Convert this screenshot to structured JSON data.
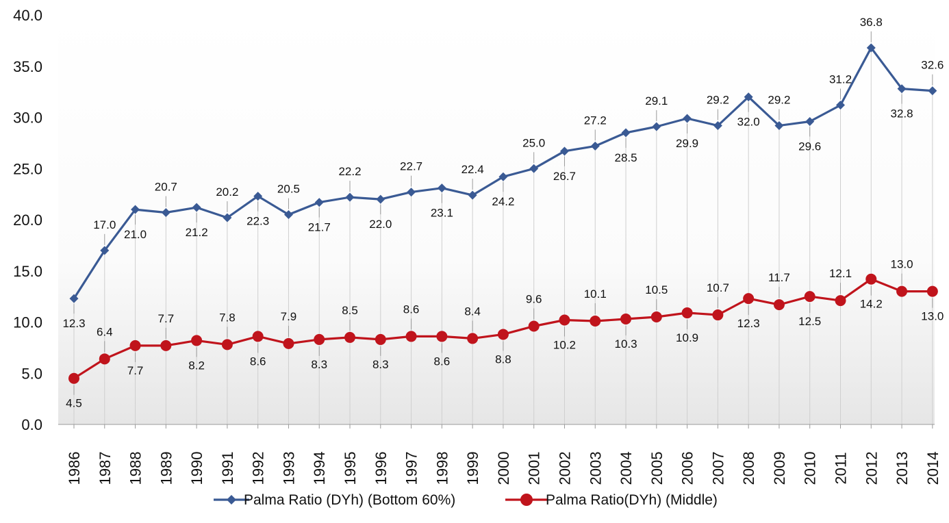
{
  "chart_data": {
    "type": "line",
    "categories": [
      "1986",
      "1987",
      "1988",
      "1989",
      "1990",
      "1991",
      "1992",
      "1993",
      "1994",
      "1995",
      "1996",
      "1997",
      "1998",
      "1999",
      "2000",
      "2001",
      "2002",
      "2003",
      "2004",
      "2005",
      "2006",
      "2007",
      "2008",
      "2009",
      "2010",
      "2011",
      "2012",
      "2013",
      "2014"
    ],
    "ylim": [
      0,
      40
    ],
    "yticks": [
      "0.0",
      "5.0",
      "10.0",
      "15.0",
      "20.0",
      "25.0",
      "30.0",
      "35.0",
      "40.0"
    ],
    "grid": "vertical drop lines",
    "legend_position": "bottom",
    "series": [
      {
        "name": "Palma Ratio (DYh) (Bottom 60%)",
        "color": "#3a5a94",
        "marker": "diamond",
        "values": [
          12.3,
          17.0,
          21.0,
          20.7,
          21.2,
          20.2,
          22.3,
          20.5,
          21.7,
          22.2,
          22.0,
          22.7,
          23.1,
          22.4,
          24.2,
          25.0,
          26.7,
          27.2,
          28.5,
          29.1,
          29.9,
          29.2,
          32.0,
          29.2,
          29.6,
          31.2,
          36.8,
          32.8,
          32.6
        ],
        "labels": [
          "12.3",
          "17.0",
          "21.0",
          "20.7",
          "21.2",
          "20.2",
          "22.3",
          "20.5",
          "21.7",
          "22.2",
          "22.0",
          "22.7",
          "23.1",
          "22.4",
          "24.2",
          "25.0",
          "26.7",
          "27.2",
          "28.5",
          "29.1",
          "29.9",
          "29.2",
          "32.0",
          "29.2",
          "29.6",
          "31.2",
          "36.8",
          "32.8",
          "32.6"
        ]
      },
      {
        "name": "Palma Ratio(DYh) (Middle)",
        "color": "#c0141c",
        "marker": "circle",
        "values": [
          4.5,
          6.4,
          7.7,
          7.7,
          8.2,
          7.8,
          8.6,
          7.9,
          8.3,
          8.5,
          8.3,
          8.6,
          8.6,
          8.4,
          8.8,
          9.6,
          10.2,
          10.1,
          10.3,
          10.5,
          10.9,
          10.7,
          12.3,
          11.7,
          12.5,
          12.1,
          14.2,
          13.0,
          13.0
        ],
        "labels": [
          "4.5",
          "6.4",
          "7.7",
          "7.7",
          "8.2",
          "7.8",
          "8.6",
          "7.9",
          "8.3",
          "8.5",
          "8.3",
          "8.6",
          "8.6",
          "8.4",
          "8.8",
          "9.6",
          "10.2",
          "10.1",
          "10.3",
          "10.5",
          "10.9",
          "10.7",
          "12.3",
          "11.7",
          "12.5",
          "12.1",
          "14.2",
          "13.0",
          "13.0"
        ]
      }
    ]
  }
}
